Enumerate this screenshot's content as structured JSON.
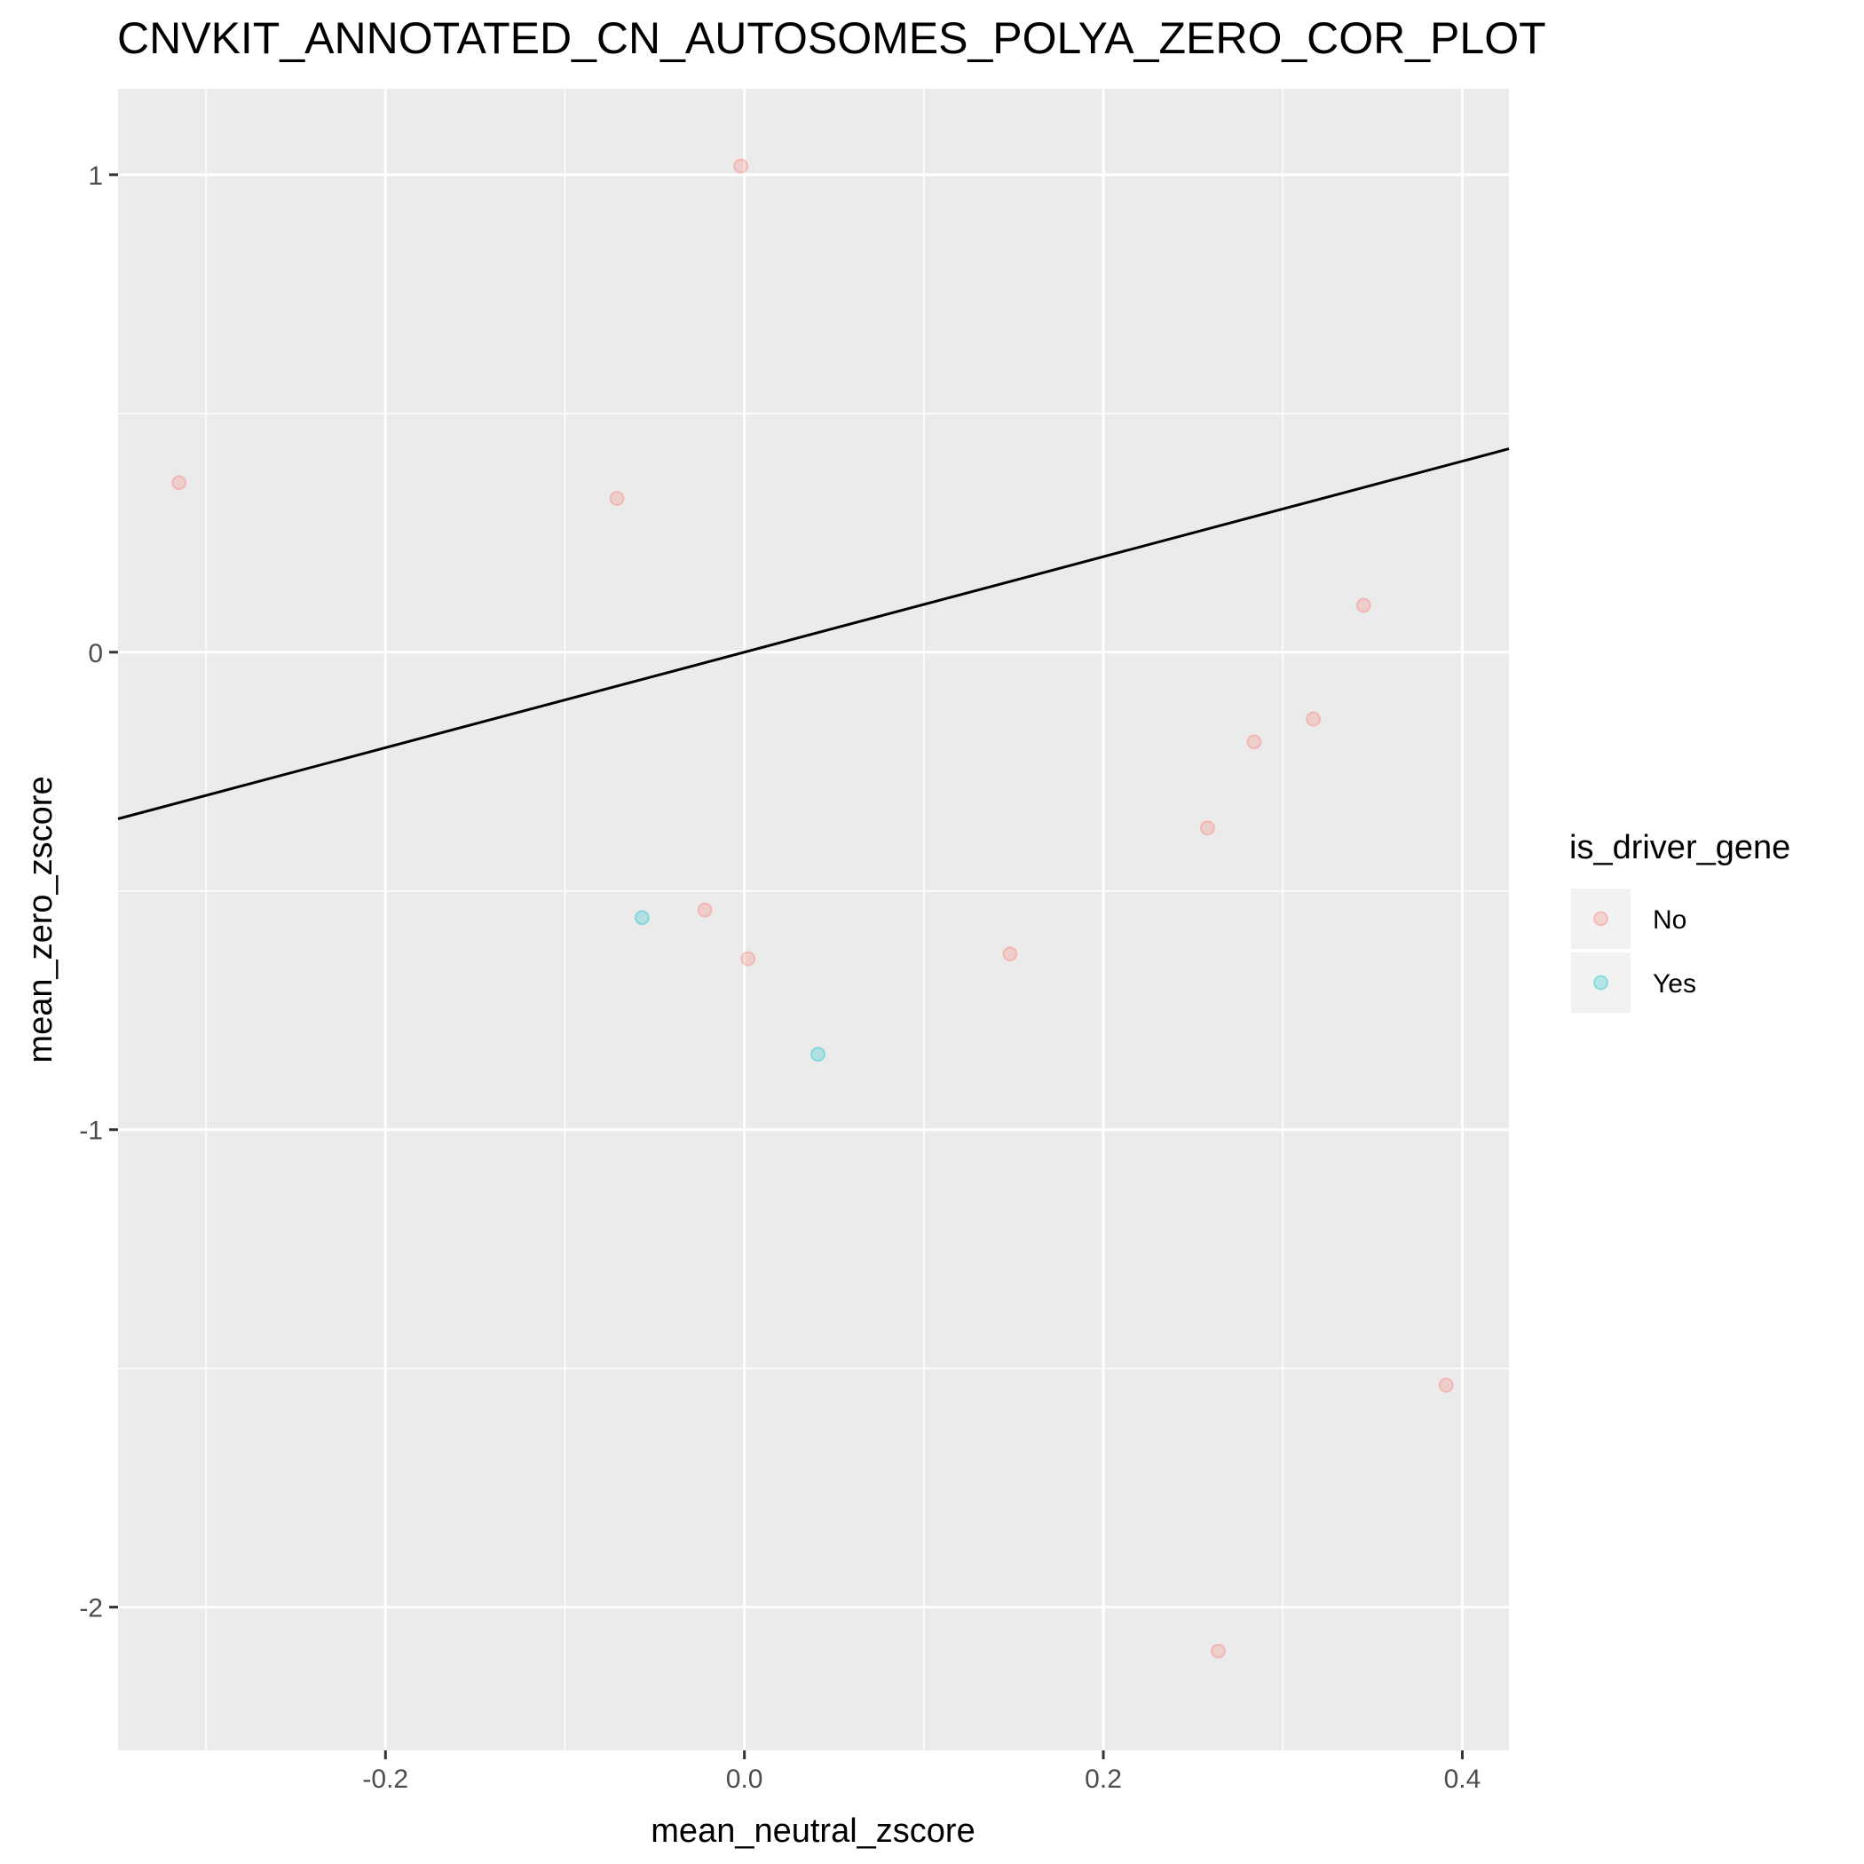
{
  "chart_data": {
    "type": "scatter",
    "title": "CNVKIT_ANNOTATED_CN_AUTOSOMES_POLYA_ZERO_COR_PLOT",
    "xlabel": "mean_neutral_zscore",
    "ylabel": "mean_zero_zscore",
    "xlim": [
      -0.349,
      0.426
    ],
    "ylim": [
      -2.3,
      1.18
    ],
    "x_ticks": [
      -0.2,
      0.0,
      0.2,
      0.4
    ],
    "x_tick_labels": [
      "-0.2",
      "0.0",
      "0.2",
      "0.4"
    ],
    "y_ticks": [
      -2,
      -1,
      0,
      1
    ],
    "y_tick_labels": [
      "-2",
      "-1",
      "0",
      "1"
    ],
    "grid": true,
    "legend": {
      "title": "is_driver_gene",
      "placement": "right",
      "entries": [
        {
          "label": "No",
          "color": "#F8766D"
        },
        {
          "label": "Yes",
          "color": "#00BFC4"
        }
      ]
    },
    "series": [
      {
        "name": "No",
        "color": "#F8766D",
        "points": [
          {
            "x": -0.315,
            "y": 0.355
          },
          {
            "x": -0.071,
            "y": 0.322
          },
          {
            "x": -0.002,
            "y": 1.018
          },
          {
            "x": -0.022,
            "y": -0.54
          },
          {
            "x": 0.002,
            "y": -0.642
          },
          {
            "x": 0.148,
            "y": -0.632
          },
          {
            "x": 0.258,
            "y": -0.368
          },
          {
            "x": 0.284,
            "y": -0.188
          },
          {
            "x": 0.317,
            "y": -0.14
          },
          {
            "x": 0.345,
            "y": 0.098
          },
          {
            "x": 0.391,
            "y": -1.535
          },
          {
            "x": 0.264,
            "y": -2.092
          }
        ]
      },
      {
        "name": "Yes",
        "color": "#00BFC4",
        "points": [
          {
            "x": -0.057,
            "y": -0.556
          },
          {
            "x": 0.041,
            "y": -0.842
          }
        ]
      }
    ],
    "reference_line": {
      "type": "identity",
      "slope": 1,
      "intercept": 0,
      "color": "#000000"
    }
  },
  "colors": {
    "panel_background": "#EBEBEB",
    "grid_major": "#FFFFFF",
    "legend_key_background": "#F2F2F2"
  }
}
